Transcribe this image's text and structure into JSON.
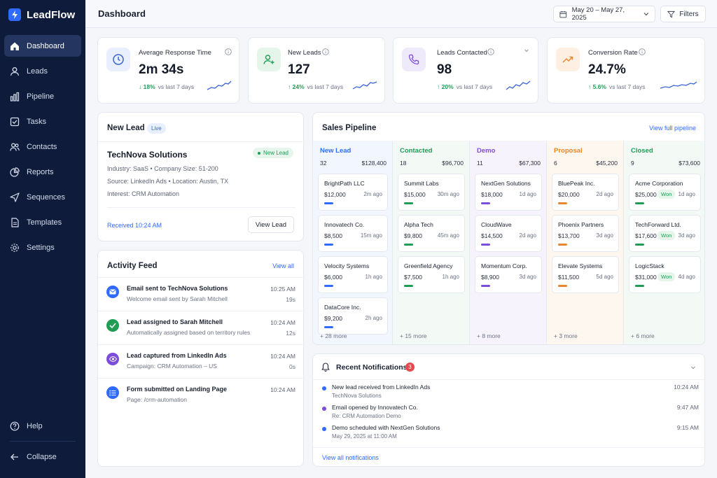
{
  "app": {
    "name": "LeadFlow"
  },
  "sidebar": {
    "items": [
      {
        "label": "Dashboard",
        "icon": "home-icon",
        "active": true
      },
      {
        "label": "Leads",
        "icon": "user-icon"
      },
      {
        "label": "Pipeline",
        "icon": "bar-chart-icon"
      },
      {
        "label": "Tasks",
        "icon": "checkbox-icon"
      },
      {
        "label": "Contacts",
        "icon": "users-icon"
      },
      {
        "label": "Reports",
        "icon": "pie-chart-icon"
      },
      {
        "label": "Sequences",
        "icon": "send-icon"
      },
      {
        "label": "Templates",
        "icon": "document-icon"
      },
      {
        "label": "Settings",
        "icon": "gear-icon"
      }
    ],
    "help_label": "Help",
    "collapse_label": "Collapse"
  },
  "header": {
    "title": "Dashboard",
    "date_range": "May 20 – May 27, 2025",
    "filters_label": "Filters"
  },
  "kpis": [
    {
      "label": "Average Response Time",
      "value": "2m 34s",
      "delta": "↓ 18%",
      "compare": "vs last 7 days",
      "icon": "clock-icon",
      "color": "#3a63d6",
      "bg": "#e9efff"
    },
    {
      "label": "New Leads",
      "value": "127",
      "delta": "↑ 24%",
      "compare": "vs last 7 days",
      "icon": "user-plus-icon",
      "color": "#1f9d55",
      "bg": "#e6f5ea"
    },
    {
      "label": "Leads Contacted",
      "value": "98",
      "delta": "↑ 20%",
      "compare": "vs last 7 days",
      "icon": "phone-icon",
      "color": "#7c4ddb",
      "bg": "#efe9fc"
    },
    {
      "label": "Conversion Rate",
      "value": "24.7%",
      "delta": "↑ 5.6%",
      "compare": "vs last 7 days",
      "icon": "trend-up-icon",
      "color": "#e8872c",
      "bg": "#fdf0e3"
    }
  ],
  "new_lead": {
    "title": "New Lead",
    "badge": "Live",
    "company": "TechNova Solutions",
    "status": "New Lead",
    "meta1": "Industry: SaaS  •  Company Size: 51-200",
    "meta2": "Source: LinkedIn Ads  •  Location: Austin, TX",
    "meta3": "Interest: CRM Automation",
    "received": "Received 10:24 AM",
    "view_label": "View Lead"
  },
  "activity": {
    "title": "Activity Feed",
    "view_all": "View all",
    "items": [
      {
        "title": "Email sent to TechNova Solutions",
        "sub": "Welcome email sent by Sarah Mitchell",
        "time": "10:25 AM",
        "dur": "19s",
        "icon": "mail-icon",
        "color": "#2f6bff"
      },
      {
        "title": "Lead assigned to Sarah Mitchell",
        "sub": "Automatically assigned based on territory rules",
        "time": "10:24 AM",
        "dur": "12s",
        "icon": "check-icon",
        "color": "#1f9d55"
      },
      {
        "title": "Lead captured from LinkedIn Ads",
        "sub": "Campaign: CRM Automation – US",
        "time": "10:24 AM",
        "dur": "0s",
        "icon": "eye-icon",
        "color": "#7c4ddb"
      },
      {
        "title": "Form submitted on Landing Page",
        "sub": "Page: /crm-automation",
        "time": "10:24 AM",
        "dur": "",
        "icon": "list-icon",
        "color": "#2f6bff"
      }
    ]
  },
  "pipeline": {
    "title": "Sales Pipeline",
    "view_full": "View full pipeline",
    "columns": [
      {
        "name": "New Lead",
        "count": "32",
        "total": "$128,400",
        "color": "#2f6bff",
        "bg": "#f2f6ff",
        "more": "+ 28 more",
        "deals": [
          {
            "name": "BrightPath LLC",
            "amount": "$12,000",
            "ago": "2m ago"
          },
          {
            "name": "Innovatech Co.",
            "amount": "$8,500",
            "ago": "15m ago"
          },
          {
            "name": "Velocity Systems",
            "amount": "$6,000",
            "ago": "1h ago"
          },
          {
            "name": "DataCore Inc.",
            "amount": "$9,200",
            "ago": "2h ago"
          }
        ]
      },
      {
        "name": "Contacted",
        "count": "18",
        "total": "$96,700",
        "color": "#1f9d55",
        "bg": "#f3faf5",
        "more": "+ 15 more",
        "deals": [
          {
            "name": "Summit Labs",
            "amount": "$15,000",
            "ago": "30m ago"
          },
          {
            "name": "Alpha Tech",
            "amount": "$9,800",
            "ago": "45m ago"
          },
          {
            "name": "Greenfield Agency",
            "amount": "$7,500",
            "ago": "1h ago"
          }
        ]
      },
      {
        "name": "Demo",
        "count": "11",
        "total": "$67,300",
        "color": "#7c4ddb",
        "bg": "#f7f3fd",
        "more": "+ 8 more",
        "deals": [
          {
            "name": "NextGen Solutions",
            "amount": "$18,000",
            "ago": "1d ago"
          },
          {
            "name": "CloudWave",
            "amount": "$14,500",
            "ago": "2d ago"
          },
          {
            "name": "Momentum Corp.",
            "amount": "$8,900",
            "ago": "3d ago"
          }
        ]
      },
      {
        "name": "Proposal",
        "count": "6",
        "total": "$45,200",
        "color": "#e8872c",
        "bg": "#fdf7f0",
        "more": "+ 3 more",
        "deals": [
          {
            "name": "BluePeak Inc.",
            "amount": "$20,000",
            "ago": "2d ago"
          },
          {
            "name": "Phoenix Partners",
            "amount": "$13,700",
            "ago": "3d ago"
          },
          {
            "name": "Elevate Systems",
            "amount": "$11,500",
            "ago": "5d ago"
          }
        ]
      },
      {
        "name": "Closed",
        "count": "9",
        "total": "$73,600",
        "color": "#1f9d55",
        "bg": "#f3faf5",
        "more": "+ 6 more",
        "deals": [
          {
            "name": "Acme Corporation",
            "amount": "$25,000",
            "ago": "1d ago",
            "won": "Won"
          },
          {
            "name": "TechForward Ltd.",
            "amount": "$17,600",
            "ago": "3d ago",
            "won": "Won"
          },
          {
            "name": "LogicStack",
            "amount": "$31,000",
            "ago": "4d ago",
            "won": "Won"
          }
        ]
      }
    ]
  },
  "notifications": {
    "title": "Recent Notifications",
    "count": "3",
    "view_all": "View all notifications",
    "items": [
      {
        "title": "New lead received from LinkedIn Ads",
        "sub": "TechNova Solutions",
        "time": "10:24 AM",
        "color": "#2f6bff"
      },
      {
        "title": "Email opened by Innovatech Co.",
        "sub": "Re: CRM Automation Demo",
        "time": "9:47 AM",
        "color": "#7c4ddb"
      },
      {
        "title": "Demo scheduled with NextGen Solutions",
        "sub": "May 29, 2025 at 11:00 AM",
        "time": "9:15 AM",
        "color": "#2f6bff"
      }
    ]
  }
}
